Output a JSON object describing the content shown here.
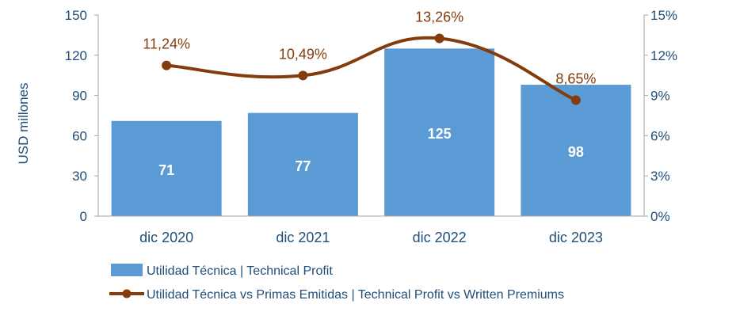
{
  "chart_data": {
    "type": "bar",
    "categories": [
      "dic 2020",
      "dic 2021",
      "dic 2022",
      "dic 2023"
    ],
    "ylabel": "USD millones",
    "ylim": [
      0,
      150
    ],
    "yticks": [
      0,
      30,
      60,
      90,
      120,
      150
    ],
    "y2lim": [
      0,
      15
    ],
    "y2ticks": [
      "0%",
      "3%",
      "6%",
      "9%",
      "12%",
      "15%"
    ],
    "grid": false,
    "legend_position": "bottom-left",
    "series": [
      {
        "name": "Utilidad Técnica | Technical Profit",
        "type": "bar",
        "axis": "left",
        "values": [
          71,
          77,
          125,
          98
        ],
        "labels": [
          "71",
          "77",
          "125",
          "98"
        ],
        "color": "#5b9bd5"
      },
      {
        "name": "Utilidad Técnica vs Primas Emitidas | Technical Profit vs Written Premiums",
        "type": "line",
        "axis": "right",
        "values": [
          11.24,
          10.49,
          13.26,
          8.65
        ],
        "labels": [
          "11,24%",
          "10,49%",
          "13,26%",
          "8,65%"
        ],
        "color": "#843c0c"
      }
    ],
    "axis_color": "#1f4e79"
  }
}
